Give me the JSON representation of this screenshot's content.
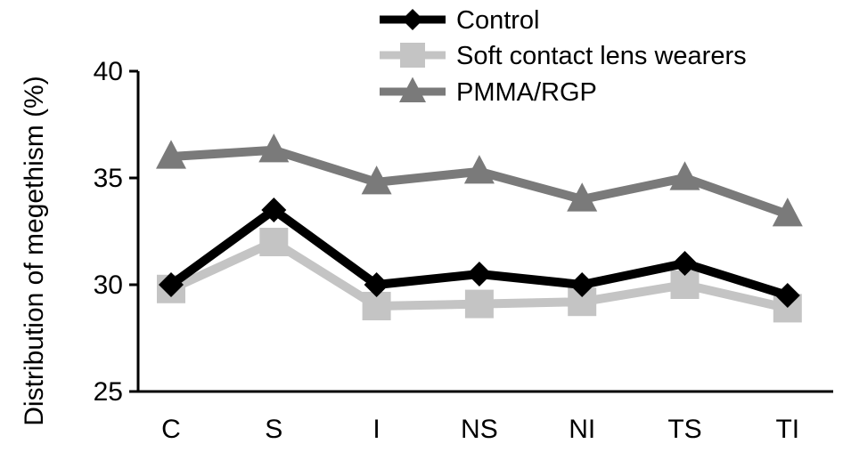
{
  "chart_data": {
    "type": "line",
    "title": "",
    "xlabel": "",
    "ylabel": "Distribution of megethism (%)",
    "categories": [
      "C",
      "S",
      "I",
      "NS",
      "NI",
      "TS",
      "TI"
    ],
    "ylim": [
      25,
      40
    ],
    "yticks": [
      25,
      30,
      35,
      40
    ],
    "grid": false,
    "legend_position": "top",
    "series": [
      {
        "name": "Control",
        "marker": "diamond",
        "color": "#000000",
        "values": [
          30.0,
          33.5,
          30.0,
          30.5,
          30.0,
          31.0,
          29.5
        ]
      },
      {
        "name": "Soft contact lens wearers",
        "marker": "square",
        "color": "#c4c4c4",
        "values": [
          29.8,
          32.0,
          29.0,
          29.1,
          29.2,
          30.0,
          28.9
        ]
      },
      {
        "name": "PMMA/RGP",
        "marker": "triangle",
        "color": "#7a7a7a",
        "values": [
          36.0,
          36.3,
          34.8,
          35.3,
          34.0,
          35.0,
          33.3
        ]
      }
    ]
  }
}
